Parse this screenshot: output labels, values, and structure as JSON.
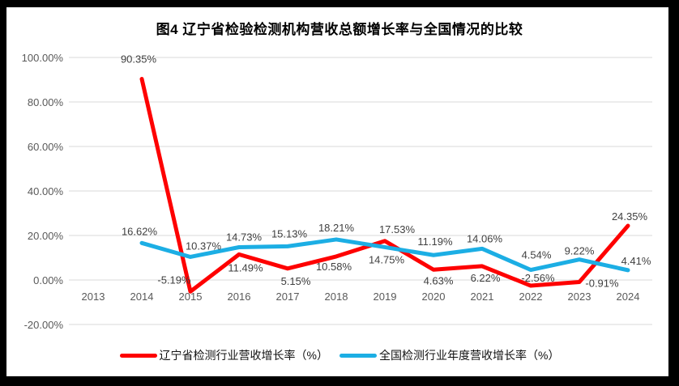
{
  "chart_data": {
    "type": "line",
    "title": "图4 辽宁省检验检测机构营收总额增长率与全国情况的比较",
    "categories": [
      "2013",
      "2014",
      "2015",
      "2016",
      "2017",
      "2018",
      "2019",
      "2020",
      "2021",
      "2022",
      "2023",
      "2024"
    ],
    "series": [
      {
        "name": "辽宁省检测行业营收增长率（%）",
        "color": "#fe0000",
        "values": [
          null,
          90.35,
          -5.19,
          11.49,
          5.15,
          10.58,
          17.53,
          4.63,
          6.22,
          -2.56,
          -0.91,
          24.35
        ],
        "label_offsets": [
          [
            0,
            0
          ],
          [
            -4,
            -20
          ],
          [
            -20,
            -10
          ],
          [
            8,
            21
          ],
          [
            10,
            20
          ],
          [
            -3,
            17
          ],
          [
            15,
            -10
          ],
          [
            6,
            18
          ],
          [
            4,
            19
          ],
          [
            9,
            -5
          ],
          [
            28,
            6
          ],
          [
            2,
            -7
          ]
        ]
      },
      {
        "name": "全国检测行业年度营收增长率（%）",
        "color": "#1caee4",
        "values": [
          null,
          16.62,
          10.37,
          14.73,
          15.13,
          18.21,
          14.75,
          11.19,
          14.06,
          4.54,
          9.22,
          4.41
        ],
        "label_offsets": [
          [
            0,
            0
          ],
          [
            -3,
            -10
          ],
          [
            16,
            -9
          ],
          [
            6,
            -8
          ],
          [
            2,
            -11
          ],
          [
            0,
            -10
          ],
          [
            2,
            20
          ],
          [
            2,
            -12
          ],
          [
            3,
            -8
          ],
          [
            7,
            -14
          ],
          [
            0,
            -6
          ],
          [
            10,
            -7
          ]
        ]
      }
    ],
    "y_axis": {
      "ticks": [
        "100.00%",
        "80.00%",
        "60.00%",
        "40.00%",
        "20.00%",
        "0.00%",
        "-20.00%"
      ],
      "values": [
        100,
        80,
        60,
        40,
        20,
        0,
        -20
      ]
    },
    "ylim": [
      -20,
      100
    ],
    "grid": true,
    "legend_position": "bottom",
    "colors": {
      "grid": "#d9d9d9",
      "frame": "#000000",
      "background": "#ffffff"
    },
    "label_format": "percent-2dp"
  }
}
